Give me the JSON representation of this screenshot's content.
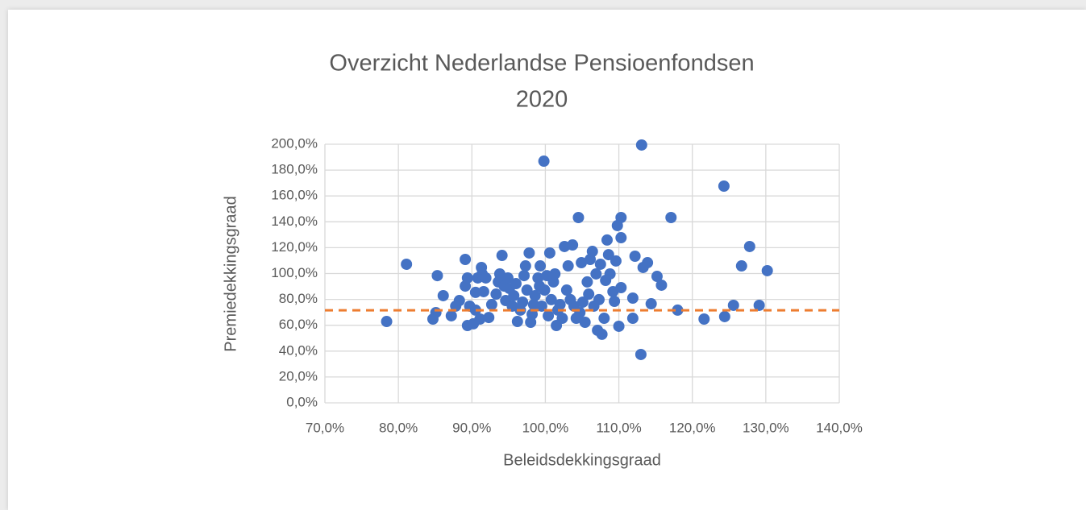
{
  "chart_data": {
    "type": "scatter",
    "title": [
      "Overzicht Nederlandse Pensioenfondsen",
      "2020"
    ],
    "x_label": "Beleidsdekkingsgraad",
    "y_label": "Premiedekkingsgraad",
    "color": "#4472c4",
    "grid": true,
    "hline": {
      "value": 71.6,
      "color": "#ed7d31",
      "dashed": true
    },
    "xlim": [
      70,
      140
    ],
    "ylim": [
      0,
      200
    ],
    "xticks": [
      {
        "value": 70,
        "label": "70,0%"
      },
      {
        "value": 80,
        "label": "80,0%"
      },
      {
        "value": 90,
        "label": "90,0%"
      },
      {
        "value": 100,
        "label": "100,0%"
      },
      {
        "value": 110,
        "label": "110,0%"
      },
      {
        "value": 120,
        "label": "120,0%"
      },
      {
        "value": 130,
        "label": "130,0%"
      },
      {
        "value": 140,
        "label": "140,0%"
      }
    ],
    "yticks": [
      {
        "value": 0,
        "label": "0,0%"
      },
      {
        "value": 20,
        "label": "20,0%"
      },
      {
        "value": 40,
        "label": "40,0%"
      },
      {
        "value": 60,
        "label": "60,0%"
      },
      {
        "value": 80,
        "label": "80,0%"
      },
      {
        "value": 100,
        "label": "100,0%"
      },
      {
        "value": 120,
        "label": "120,0%"
      },
      {
        "value": 140,
        "label": "140,0%"
      },
      {
        "value": 160,
        "label": "160,0%"
      },
      {
        "value": 180,
        "label": "180,0%"
      },
      {
        "value": 200,
        "label": "200,0%"
      }
    ],
    "x": [
      78.4,
      81.1,
      84.7,
      85.1,
      85.3,
      86.1,
      87.2,
      87.8,
      88.3,
      89.1,
      89.1,
      89.4,
      89.4,
      89.7,
      90.2,
      90.5,
      90.5,
      90.8,
      91.1,
      91.3,
      91.4,
      91.6,
      91.9,
      92.3,
      92.7,
      93.3,
      93.6,
      93.8,
      94.1,
      94.4,
      94.6,
      94.9,
      95.1,
      95.5,
      95.7,
      96.0,
      96.2,
      96.6,
      96.9,
      97.1,
      97.3,
      97.5,
      97.8,
      98.0,
      98.2,
      98.4,
      98.6,
      99.0,
      99.2,
      99.3,
      99.5,
      99.8,
      99.9,
      100.2,
      100.4,
      100.6,
      100.8,
      101.1,
      101.3,
      101.5,
      101.7,
      102.0,
      102.3,
      102.6,
      102.9,
      103.1,
      103.4,
      103.7,
      103.9,
      104.2,
      104.5,
      104.7,
      104.9,
      105.1,
      105.4,
      105.7,
      105.9,
      106.1,
      106.4,
      106.6,
      106.9,
      107.1,
      107.3,
      107.5,
      107.7,
      108.0,
      108.2,
      108.4,
      108.6,
      108.8,
      109.2,
      109.4,
      109.6,
      109.8,
      110.0,
      110.3,
      110.3,
      110.3,
      111.9,
      111.9,
      112.2,
      113.1,
      113.0,
      113.3,
      113.9,
      114.4,
      115.2,
      115.8,
      117.1,
      118.0,
      121.6,
      124.3,
      124.4,
      125.6,
      126.7,
      127.8,
      129.1,
      130.2
    ],
    "values": [
      62.9,
      107.2,
      64.8,
      69.8,
      98.4,
      82.9,
      67.3,
      74.8,
      79.1,
      110.9,
      90.3,
      96.6,
      59.8,
      74.8,
      61.1,
      85.4,
      71.7,
      96.6,
      64.8,
      104.7,
      99.7,
      86.0,
      96.6,
      66.0,
      76.0,
      84.1,
      93.5,
      99.7,
      114.0,
      90.3,
      79.1,
      96.6,
      88.5,
      74.8,
      82.9,
      92.2,
      62.9,
      71.7,
      77.9,
      98.4,
      105.9,
      87.2,
      115.9,
      62.3,
      68.5,
      76.0,
      82.9,
      96.6,
      90.3,
      105.9,
      74.8,
      186.9,
      87.2,
      98.4,
      67.3,
      115.9,
      79.8,
      93.5,
      99.7,
      59.8,
      71.7,
      76.0,
      65.4,
      120.9,
      87.2,
      105.9,
      79.8,
      122.1,
      74.8,
      65.4,
      143.3,
      69.8,
      108.4,
      77.9,
      62.3,
      93.5,
      84.1,
      110.9,
      117.1,
      74.8,
      99.7,
      56.1,
      79.8,
      107.2,
      53.0,
      65.4,
      94.7,
      125.9,
      114.6,
      99.7,
      86.0,
      78.5,
      109.7,
      137.1,
      59.2,
      89.1,
      143.3,
      127.7,
      65.4,
      81.0,
      113.4,
      199.4,
      37.4,
      104.7,
      108.4,
      76.6,
      97.8,
      91.0,
      143.3,
      71.7,
      64.8,
      167.6,
      66.7,
      75.4,
      105.9,
      120.9,
      75.4,
      102.2
    ]
  }
}
